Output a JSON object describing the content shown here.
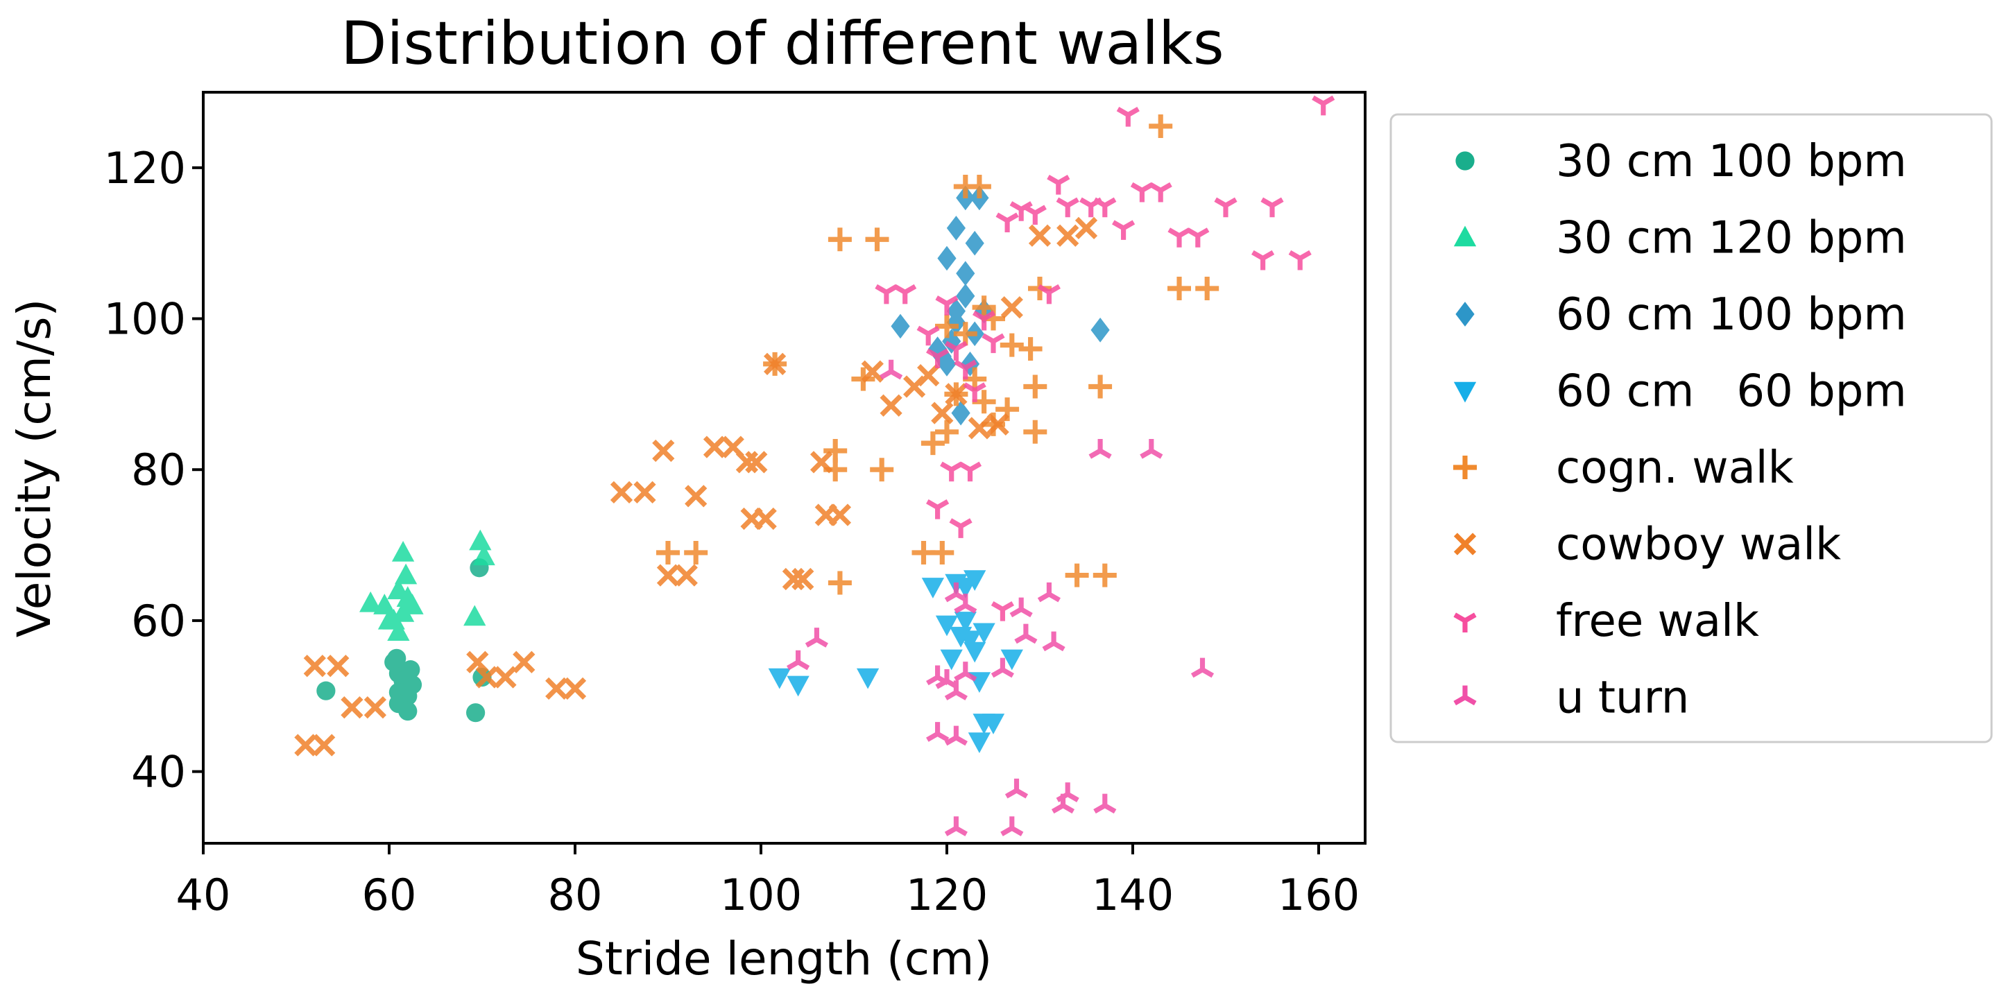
{
  "chart_data": {
    "type": "scatter",
    "title": "Distribution of different walks",
    "xlabel": "Stride length (cm)",
    "ylabel": "Velocity (cm/s)",
    "xlim": [
      40,
      165
    ],
    "ylim": [
      30.5,
      130
    ],
    "xticks": [
      40,
      60,
      80,
      100,
      120,
      140,
      160
    ],
    "yticks": [
      40,
      60,
      80,
      100,
      120
    ],
    "grid": false,
    "legend_position": "outside-right",
    "series": [
      {
        "name": "30 cm 100 bpm",
        "marker": "circle",
        "color": "#1aae8c",
        "points": [
          [
            53.2,
            50.7
          ],
          [
            60.5,
            54.5
          ],
          [
            61,
            53
          ],
          [
            61.5,
            52
          ],
          [
            61,
            50.5
          ],
          [
            62,
            50
          ],
          [
            62.5,
            51.5
          ],
          [
            61,
            49
          ],
          [
            62,
            48
          ],
          [
            60.8,
            55
          ],
          [
            62.3,
            53.5
          ],
          [
            69.3,
            47.8
          ],
          [
            69.7,
            67
          ],
          [
            70,
            52.5
          ]
        ]
      },
      {
        "name": "30 cm 120 bpm",
        "marker": "triangle-up",
        "color": "#1ddba0",
        "points": [
          [
            58,
            62.3
          ],
          [
            59.5,
            62
          ],
          [
            60.5,
            60
          ],
          [
            61,
            58.5
          ],
          [
            61.5,
            61
          ],
          [
            62,
            63
          ],
          [
            61,
            64
          ],
          [
            60,
            60
          ],
          [
            61.5,
            69
          ],
          [
            62.5,
            62
          ],
          [
            69.2,
            60.5
          ],
          [
            69.8,
            70.5
          ],
          [
            70.2,
            68.5
          ],
          [
            61.8,
            66
          ]
        ]
      },
      {
        "name": "60 cm 100 bpm",
        "marker": "diamond",
        "color": "#2d96c8",
        "points": [
          [
            115,
            99
          ],
          [
            119.5,
            95
          ],
          [
            120.5,
            97
          ],
          [
            121,
            101
          ],
          [
            122,
            103
          ],
          [
            120,
            108
          ],
          [
            121,
            112
          ],
          [
            122,
            116
          ],
          [
            123.5,
            116
          ],
          [
            122,
            106
          ],
          [
            123,
            110
          ],
          [
            124,
            101
          ],
          [
            121,
            99.5
          ],
          [
            122.5,
            94
          ],
          [
            120,
            94
          ],
          [
            123,
            98
          ],
          [
            136.5,
            98.5
          ],
          [
            121.5,
            87.5
          ],
          [
            119,
            96
          ]
        ]
      },
      {
        "name": "60 cm   60 bpm",
        "marker": "triangle-down",
        "color": "#16aee8",
        "points": [
          [
            102,
            52.5
          ],
          [
            104,
            51.5
          ],
          [
            111.5,
            52.5
          ],
          [
            118.5,
            64.5
          ],
          [
            121,
            65
          ],
          [
            122,
            64.5
          ],
          [
            123,
            65.5
          ],
          [
            120,
            59.5
          ],
          [
            121.5,
            58
          ],
          [
            122.5,
            57.5
          ],
          [
            123,
            56
          ],
          [
            124,
            58.5
          ],
          [
            120.5,
            55
          ],
          [
            123.5,
            52
          ],
          [
            122,
            60
          ],
          [
            127,
            55
          ],
          [
            124,
            46.5
          ],
          [
            125,
            46.5
          ],
          [
            123.5,
            44
          ]
        ]
      },
      {
        "name": "cogn. walk",
        "marker": "plus",
        "color": "#f08a2e",
        "points": [
          [
            108.5,
            110.5
          ],
          [
            112.5,
            110.5
          ],
          [
            122,
            117.5
          ],
          [
            123.5,
            117.5
          ],
          [
            143,
            125.5
          ],
          [
            90,
            69
          ],
          [
            93,
            69
          ],
          [
            101.5,
            94
          ],
          [
            108,
            82.5
          ],
          [
            108,
            80
          ],
          [
            108.5,
            65
          ],
          [
            111,
            92
          ],
          [
            113,
            80
          ],
          [
            117.5,
            69
          ],
          [
            119.5,
            69
          ],
          [
            120,
            85
          ],
          [
            121,
            90
          ],
          [
            122,
            98
          ],
          [
            123,
            92
          ],
          [
            124,
            89
          ],
          [
            125,
            86
          ],
          [
            126.5,
            88
          ],
          [
            125,
            100
          ],
          [
            127,
            96.5
          ],
          [
            129,
            96
          ],
          [
            129.5,
            91
          ],
          [
            129.5,
            85
          ],
          [
            130,
            104
          ],
          [
            134,
            66
          ],
          [
            137,
            66
          ],
          [
            136.5,
            91
          ],
          [
            145,
            104
          ],
          [
            148,
            104
          ],
          [
            118.5,
            83.5
          ],
          [
            124,
            101.5
          ],
          [
            120,
            99
          ]
        ]
      },
      {
        "name": "cowboy walk",
        "marker": "x",
        "color": "#f0812a",
        "points": [
          [
            51,
            43.5
          ],
          [
            53,
            43.5
          ],
          [
            52,
            54
          ],
          [
            54.5,
            54
          ],
          [
            56,
            48.5
          ],
          [
            58.5,
            48.5
          ],
          [
            69.5,
            54.5
          ],
          [
            70.5,
            52.5
          ],
          [
            72.5,
            52.5
          ],
          [
            74.5,
            54.5
          ],
          [
            78,
            51
          ],
          [
            80,
            51
          ],
          [
            85,
            77
          ],
          [
            87.5,
            77
          ],
          [
            89.5,
            82.5
          ],
          [
            90,
            66
          ],
          [
            92,
            66
          ],
          [
            93,
            76.5
          ],
          [
            95,
            83
          ],
          [
            97,
            83
          ],
          [
            98.5,
            81
          ],
          [
            99.5,
            81
          ],
          [
            99,
            73.5
          ],
          [
            100.5,
            73.5
          ],
          [
            101.5,
            94
          ],
          [
            103.5,
            65.5
          ],
          [
            104.5,
            65.5
          ],
          [
            106.5,
            81
          ],
          [
            107,
            74
          ],
          [
            108.5,
            74
          ],
          [
            112,
            93
          ],
          [
            114,
            88.5
          ],
          [
            116.5,
            91
          ],
          [
            118,
            92.5
          ],
          [
            119.5,
            87.5
          ],
          [
            121,
            90
          ],
          [
            123.5,
            85.5
          ],
          [
            125.5,
            86
          ],
          [
            127,
            101.5
          ],
          [
            130,
            111
          ],
          [
            133,
            111
          ],
          [
            135,
            112
          ]
        ]
      },
      {
        "name": "free walk",
        "marker": "tri-down",
        "color": "#f64e9e",
        "points": [
          [
            113.5,
            103.5
          ],
          [
            115.5,
            103.5
          ],
          [
            118,
            98
          ],
          [
            119,
            95
          ],
          [
            120,
            102
          ],
          [
            121,
            96
          ],
          [
            122,
            93.5
          ],
          [
            123,
            90.5
          ],
          [
            124,
            100
          ],
          [
            125,
            97
          ],
          [
            126.5,
            113
          ],
          [
            128,
            114.5
          ],
          [
            129.5,
            114
          ],
          [
            131,
            103.5
          ],
          [
            132,
            118
          ],
          [
            133,
            115
          ],
          [
            135.5,
            115
          ],
          [
            137,
            115
          ],
          [
            139,
            112
          ],
          [
            139.5,
            127
          ],
          [
            141,
            117
          ],
          [
            143,
            117
          ],
          [
            145,
            111
          ],
          [
            147,
            111
          ],
          [
            150,
            115
          ],
          [
            154,
            108
          ],
          [
            155,
            115
          ],
          [
            158,
            108
          ],
          [
            160.5,
            128.5
          ],
          [
            119,
            75
          ],
          [
            121.5,
            72.5
          ],
          [
            120.5,
            80
          ],
          [
            122.5,
            80
          ],
          [
            126,
            61.5
          ]
        ]
      },
      {
        "name": "u turn",
        "marker": "tri-up",
        "color": "#f050a8",
        "points": [
          [
            104,
            54.5
          ],
          [
            106,
            57.5
          ],
          [
            114,
            93
          ],
          [
            119,
            45
          ],
          [
            119,
            52.5
          ],
          [
            120,
            52
          ],
          [
            121,
            44.5
          ],
          [
            121,
            50.5
          ],
          [
            122,
            53
          ],
          [
            121,
            63.5
          ],
          [
            122,
            62
          ],
          [
            126,
            53.5
          ],
          [
            127.5,
            37.5
          ],
          [
            127,
            32.5
          ],
          [
            121,
            32.5
          ],
          [
            128.5,
            58
          ],
          [
            131,
            63.5
          ],
          [
            131.5,
            57
          ],
          [
            132.5,
            35.5
          ],
          [
            133,
            37
          ],
          [
            137,
            35.5
          ],
          [
            136.5,
            82.5
          ],
          [
            142,
            82.5
          ],
          [
            147.5,
            53.5
          ],
          [
            128,
            61.5
          ]
        ]
      }
    ]
  }
}
